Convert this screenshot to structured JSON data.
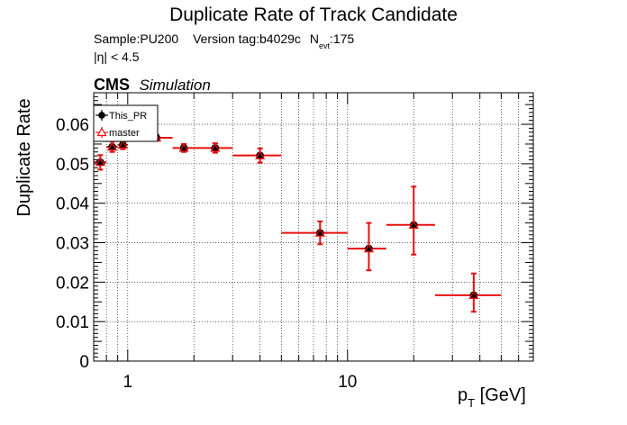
{
  "chart_data": {
    "type": "scatter",
    "title": "Duplicate Rate of Track Candidate",
    "subtitle": {
      "sample": "Sample:PU200",
      "version": "Version tag:b4029c",
      "nevt_N": "N",
      "nevt_sub": "evt",
      "nevt_val": ":175",
      "eta_cut": "|η| < 4.5"
    },
    "cms_label": "CMS",
    "simulation_label": "Simulation",
    "xlabel_main": "p",
    "xlabel_sub": "T",
    "xlabel_unit": " [GeV]",
    "ylabel": "Duplicate Rate",
    "xscale": "log",
    "xlim": [
      0.7,
      70
    ],
    "ylim": [
      0,
      0.068
    ],
    "grid": true,
    "legend_position": "top-left",
    "x_tick_labels": [
      {
        "value": 1,
        "label": "1"
      },
      {
        "value": 10,
        "label": "10"
      }
    ],
    "y_tick_labels": [
      {
        "value": 0,
        "label": "0"
      },
      {
        "value": 0.01,
        "label": "0.01"
      },
      {
        "value": 0.02,
        "label": "0.02"
      },
      {
        "value": 0.03,
        "label": "0.03"
      },
      {
        "value": 0.04,
        "label": "0.04"
      },
      {
        "value": 0.05,
        "label": "0.05"
      },
      {
        "value": 0.06,
        "label": "0.06"
      }
    ],
    "series": [
      {
        "name": "This_PR",
        "marker": "filled-circle",
        "color": "#000000",
        "points": [
          {
            "x": 0.75,
            "xlo": 0.7,
            "xhi": 0.8,
            "y": 0.0504,
            "ylo": 0.0485,
            "yhi": 0.0522
          },
          {
            "x": 0.85,
            "xlo": 0.8,
            "xhi": 0.9,
            "y": 0.0543,
            "ylo": 0.053,
            "yhi": 0.0556
          },
          {
            "x": 0.95,
            "xlo": 0.9,
            "xhi": 1.0,
            "y": 0.0548,
            "ylo": 0.0537,
            "yhi": 0.0559
          },
          {
            "x": 1.35,
            "xlo": 1.1,
            "xhi": 1.6,
            "y": 0.0566,
            "ylo": 0.0558,
            "yhi": 0.0574
          },
          {
            "x": 1.8,
            "xlo": 1.6,
            "xhi": 2.0,
            "y": 0.054,
            "ylo": 0.053,
            "yhi": 0.055
          },
          {
            "x": 2.5,
            "xlo": 2.0,
            "xhi": 3.0,
            "y": 0.054,
            "ylo": 0.0528,
            "yhi": 0.0552
          },
          {
            "x": 4.0,
            "xlo": 3.0,
            "xhi": 5.0,
            "y": 0.0521,
            "ylo": 0.0503,
            "yhi": 0.0539
          },
          {
            "x": 7.5,
            "xlo": 5.0,
            "xhi": 10.0,
            "y": 0.0325,
            "ylo": 0.0296,
            "yhi": 0.0354
          },
          {
            "x": 12.5,
            "xlo": 10.0,
            "xhi": 15.0,
            "y": 0.0285,
            "ylo": 0.023,
            "yhi": 0.035
          },
          {
            "x": 20.0,
            "xlo": 15.0,
            "xhi": 25.0,
            "y": 0.0345,
            "ylo": 0.027,
            "yhi": 0.0442
          },
          {
            "x": 37.5,
            "xlo": 25.0,
            "xhi": 50.0,
            "y": 0.0167,
            "ylo": 0.0125,
            "yhi": 0.0222
          }
        ]
      },
      {
        "name": "master",
        "marker": "open-triangle",
        "color": "#e8100e",
        "points": [
          {
            "x": 0.75,
            "xlo": 0.7,
            "xhi": 0.8,
            "y": 0.0504,
            "ylo": 0.0485,
            "yhi": 0.0522
          },
          {
            "x": 0.85,
            "xlo": 0.8,
            "xhi": 0.9,
            "y": 0.0543,
            "ylo": 0.053,
            "yhi": 0.0556
          },
          {
            "x": 0.95,
            "xlo": 0.9,
            "xhi": 1.0,
            "y": 0.0548,
            "ylo": 0.0537,
            "yhi": 0.0559
          },
          {
            "x": 1.35,
            "xlo": 1.1,
            "xhi": 1.6,
            "y": 0.0566,
            "ylo": 0.0558,
            "yhi": 0.0574
          },
          {
            "x": 1.8,
            "xlo": 1.6,
            "xhi": 2.0,
            "y": 0.054,
            "ylo": 0.053,
            "yhi": 0.055
          },
          {
            "x": 2.5,
            "xlo": 2.0,
            "xhi": 3.0,
            "y": 0.054,
            "ylo": 0.0528,
            "yhi": 0.0552
          },
          {
            "x": 4.0,
            "xlo": 3.0,
            "xhi": 5.0,
            "y": 0.0521,
            "ylo": 0.0503,
            "yhi": 0.0539
          },
          {
            "x": 7.5,
            "xlo": 5.0,
            "xhi": 10.0,
            "y": 0.0325,
            "ylo": 0.0296,
            "yhi": 0.0354
          },
          {
            "x": 12.5,
            "xlo": 10.0,
            "xhi": 15.0,
            "y": 0.0285,
            "ylo": 0.023,
            "yhi": 0.035
          },
          {
            "x": 20.0,
            "xlo": 15.0,
            "xhi": 25.0,
            "y": 0.0345,
            "ylo": 0.027,
            "yhi": 0.0442
          },
          {
            "x": 37.5,
            "xlo": 25.0,
            "xhi": 50.0,
            "y": 0.0167,
            "ylo": 0.0125,
            "yhi": 0.0222
          }
        ]
      }
    ]
  }
}
